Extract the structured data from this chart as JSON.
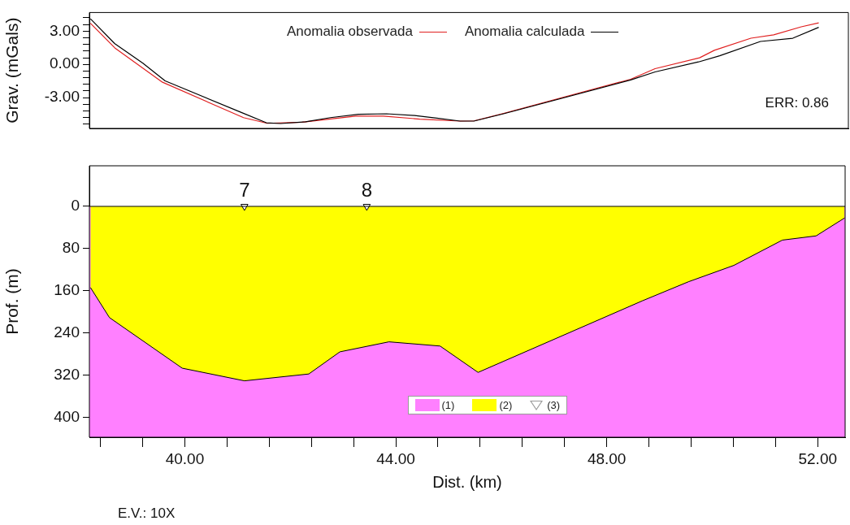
{
  "chart_data": [
    {
      "type": "line",
      "ylabel": "Grav. (mGals)",
      "legend": "top",
      "tick_labels": "y",
      "marker": "none",
      "xlim": [
        38.19,
        52.52
      ],
      "ylim": [
        -5.78,
        4.68
      ],
      "yticks": [
        {
          "value": 4.2,
          "label": null
        },
        {
          "value": 3.6,
          "label": null
        },
        {
          "value": 3,
          "label": "3.00"
        },
        {
          "value": 2.4,
          "label": null
        },
        {
          "value": 1.8,
          "label": null
        },
        {
          "value": 1.2,
          "label": null
        },
        {
          "value": 0.6,
          "label": null
        },
        {
          "value": 0,
          "label": "0.00"
        },
        {
          "value": -0.6,
          "label": null
        },
        {
          "value": -1.2,
          "label": null
        },
        {
          "value": -1.8,
          "label": null
        },
        {
          "value": -2.4,
          "label": null
        },
        {
          "value": -3,
          "label": "-3.00"
        },
        {
          "value": -3.6,
          "label": null
        },
        {
          "value": -4.2,
          "label": null
        },
        {
          "value": -4.8,
          "label": null
        },
        {
          "value": -5.4,
          "label": null
        }
      ],
      "series": [
        {
          "name": "Anomalia observada",
          "color": "#e02020",
          "x": [
            38.21,
            38.67,
            39.57,
            41.1,
            41.55,
            42.21,
            43.22,
            43.74,
            44.43,
            45.19,
            45.45,
            46.01,
            48.41,
            48.87,
            49.71,
            49.99,
            50.68,
            51.11,
            51.63,
            51.96
          ],
          "values": [
            3.71,
            1.49,
            -1.61,
            -4.81,
            -5.32,
            -5.22,
            -4.67,
            -4.67,
            -4.94,
            -5.12,
            -5.1,
            -4.42,
            -1.34,
            -0.39,
            0.59,
            1.27,
            2.36,
            2.66,
            3.39,
            3.75
          ]
        },
        {
          "name": "Anomalia calculada",
          "color": "#000000",
          "x": [
            38.21,
            38.67,
            39.2,
            39.62,
            41.05,
            41.53,
            41.8,
            42.27,
            42.74,
            43.27,
            43.8,
            44.33,
            44.75,
            45.19,
            45.45,
            46.01,
            48.41,
            48.87,
            49.69,
            50.09,
            50.86,
            51.47,
            51.96
          ],
          "values": [
            4.11,
            1.87,
            0.1,
            -1.49,
            -4.32,
            -5.27,
            -5.34,
            -5.19,
            -4.81,
            -4.51,
            -4.46,
            -4.61,
            -4.86,
            -5.12,
            -5.12,
            -4.46,
            -1.41,
            -0.68,
            0.22,
            0.78,
            2.07,
            2.36,
            3.34
          ]
        }
      ],
      "annotations": [
        "ERR: 0.86"
      ]
    },
    {
      "type": "area",
      "xlabel": "Dist. (km)",
      "ylabel": "Prof. (m)",
      "legend": "bottom",
      "xlim": [
        38.19,
        52.52
      ],
      "ylim": [
        438,
        -77
      ],
      "xticks": [
        {
          "value": 38.4,
          "label": null
        },
        {
          "value": 39.2,
          "label": null
        },
        {
          "value": 40,
          "label": "40.00"
        },
        {
          "value": 40.8,
          "label": null
        },
        {
          "value": 41.6,
          "label": null
        },
        {
          "value": 42.4,
          "label": null
        },
        {
          "value": 43.2,
          "label": null
        },
        {
          "value": 44,
          "label": "44.00"
        },
        {
          "value": 44.8,
          "label": null
        },
        {
          "value": 45.6,
          "label": null
        },
        {
          "value": 46.4,
          "label": null
        },
        {
          "value": 47.2,
          "label": null
        },
        {
          "value": 48,
          "label": "48.00"
        },
        {
          "value": 48.8,
          "label": null
        },
        {
          "value": 49.6,
          "label": null
        },
        {
          "value": 50.4,
          "label": null
        },
        {
          "value": 51.2,
          "label": null
        },
        {
          "value": 52,
          "label": "52.00"
        }
      ],
      "yticks": [
        0,
        80,
        160,
        240,
        320,
        400
      ],
      "ref_lines": [
        {
          "axis": "y",
          "value": 0,
          "color": "#000000"
        }
      ],
      "bands": [
        {
          "axis": "y",
          "from": 0,
          "to": 438,
          "label": "(1)",
          "color": "#ff80ff"
        }
      ],
      "series": [
        {
          "name": "(2)",
          "color": "#ffff00",
          "x": [
            38.21,
            38.57,
            39.95,
            41.13,
            42.35,
            42.94,
            43.87,
            44.84,
            45.56,
            48.68,
            49.55,
            50.41,
            51.33,
            51.97,
            52.51
          ],
          "values": [
            154,
            211,
            307,
            331,
            318,
            276,
            257,
            265,
            315,
            179,
            143,
            112,
            64,
            56,
            22
          ]
        },
        {
          "name": "(3)",
          "type": "scatter",
          "marker": "triangle",
          "color": "#ffffff",
          "x": [
            41.13,
            43.45
          ],
          "values": [
            0,
            0
          ]
        }
      ],
      "annotations": [
        {
          "text": "7",
          "x": 41.13,
          "y": 0
        },
        {
          "text": "8",
          "x": 43.45,
          "y": 0
        },
        "E.V.: 10X"
      ]
    }
  ]
}
